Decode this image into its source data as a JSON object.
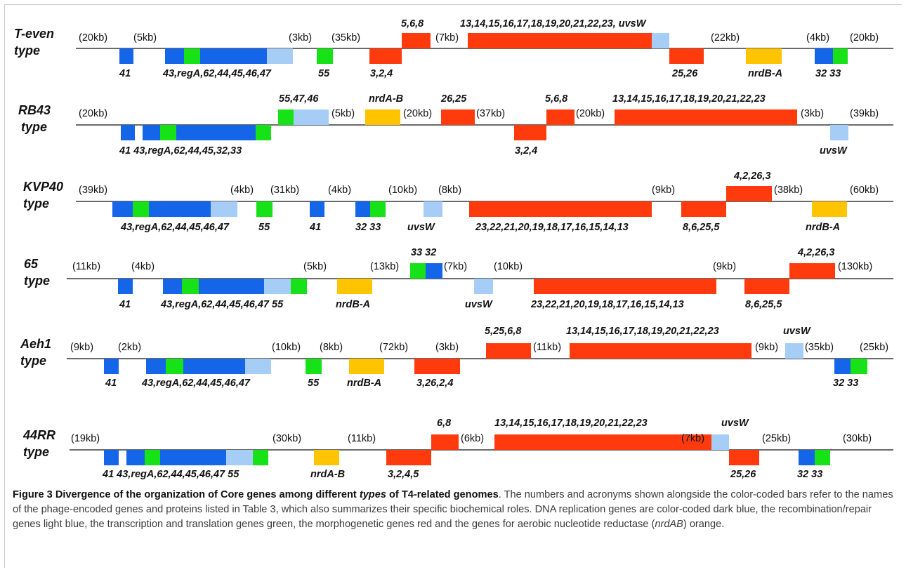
{
  "colors": {
    "replication": "#1565E8",
    "recombination": "#A6CDF5",
    "transcription": "#17E217",
    "morphogenetic": "#FF3A0C",
    "nrd": "#FFC400"
  },
  "rows": [
    {
      "name1": "T-even",
      "name2": "type",
      "distances": [
        "(20kb)",
        "(5kb)",
        "(3kb)",
        "(35kb)",
        "(7kb)",
        "(22kb)",
        "(4kb)",
        "(20kb)"
      ],
      "labels": [
        "5,6,8",
        "13,14,15,16,17,18,19,20,21,22,23, uvsW",
        "41",
        "43,regA,62,44,45,46,47",
        "55",
        "3,2,4",
        "25,26",
        "nrdB-A",
        "32 33"
      ]
    },
    {
      "name1": "RB43",
      "name2": "type",
      "distances": [
        "(20kb)",
        "(5kb)",
        "(20kb)",
        "(37kb)",
        "(20kb)",
        "(3kb)",
        "(39kb)"
      ],
      "labels": [
        "55,47,46",
        "nrdA-B",
        "26,25",
        "5,6,8",
        "13,14,15,16,17,18,19,20,21,22,23",
        "41 43,regA,62,44,45,32,33",
        "3,2,4",
        "uvsW"
      ]
    },
    {
      "name1": "KVP40",
      "name2": "type",
      "distances": [
        "(39kb)",
        "(4kb)",
        "(31kb)",
        "(4kb)",
        "(10kb)",
        "(8kb)",
        "(9kb)",
        "(38kb)",
        "(60kb)"
      ],
      "labels": [
        "4,2,26,3",
        "43,regA,62,44,45,46,47",
        "55",
        "41",
        "32 33",
        "uvsW",
        "23,22,21,20,19,18,17,16,15,14,13",
        "8,6,25,5",
        "nrdB-A"
      ]
    },
    {
      "name1": "65",
      "name2": "type",
      "distances": [
        "(11kb)",
        "(4kb)",
        "(5kb)",
        "(13kb)",
        "(7kb)",
        "(10kb)",
        "(9kb)",
        "(130kb)"
      ],
      "labels": [
        "33 32",
        "4,2,26,3",
        "41",
        "43,regA,62,44,45,46,47 55",
        "nrdB-A",
        "uvsW",
        "23,22,21,20,19,18,17,16,15,14,13",
        "8,6,25,5"
      ]
    },
    {
      "name1": "Aeh1",
      "name2": "type",
      "distances": [
        "(9kb)",
        "(2kb)",
        "(10kb)",
        "(8kb)",
        "(72kb)",
        "(3kb)",
        "(11kb)",
        "(9kb)",
        "(35kb)",
        "(25kb)"
      ],
      "labels": [
        "5,25,6,8",
        "13,14,15,16,17,18,19,20,21,22,23",
        "uvsW",
        "41",
        "43,regA,62,44,45,46,47",
        "55",
        "nrdB-A",
        "3,26,2,4",
        "32 33"
      ]
    },
    {
      "name1": "44RR",
      "name2": "type",
      "distances": [
        "(19kb)",
        "(30kb)",
        "(11kb)",
        "(6kb)",
        "(7kb)",
        "(25kb)",
        "(30kb)"
      ],
      "labels": [
        "6,8",
        "13,14,15,16,17,18,19,20,21,22,23",
        "uvsW",
        "41 43,regA,62,44,45,46,47 55",
        "nrdA-B",
        "3,2,4,5",
        "25,26",
        "32 33"
      ]
    }
  ],
  "caption": {
    "title_prefix": "Figure 3 Divergence of the organization of Core genes among different ",
    "title_italic": "types",
    "title_suffix": " of T4-related genomes",
    "text1": ". The numbers and acronyms shown alongside the color-coded bars refer to the names of the phage-encoded genes and proteins listed in Table 3, which also summarizes their specific biochemical roles. DNA replication genes are color-coded dark blue, the recombination/repair genes light blue, the transcription and translation genes green, the morphogenetic genes red and the genes for aerobic nucleotide reductase (",
    "text_italic": "nrdAB",
    "text2": ") orange."
  }
}
